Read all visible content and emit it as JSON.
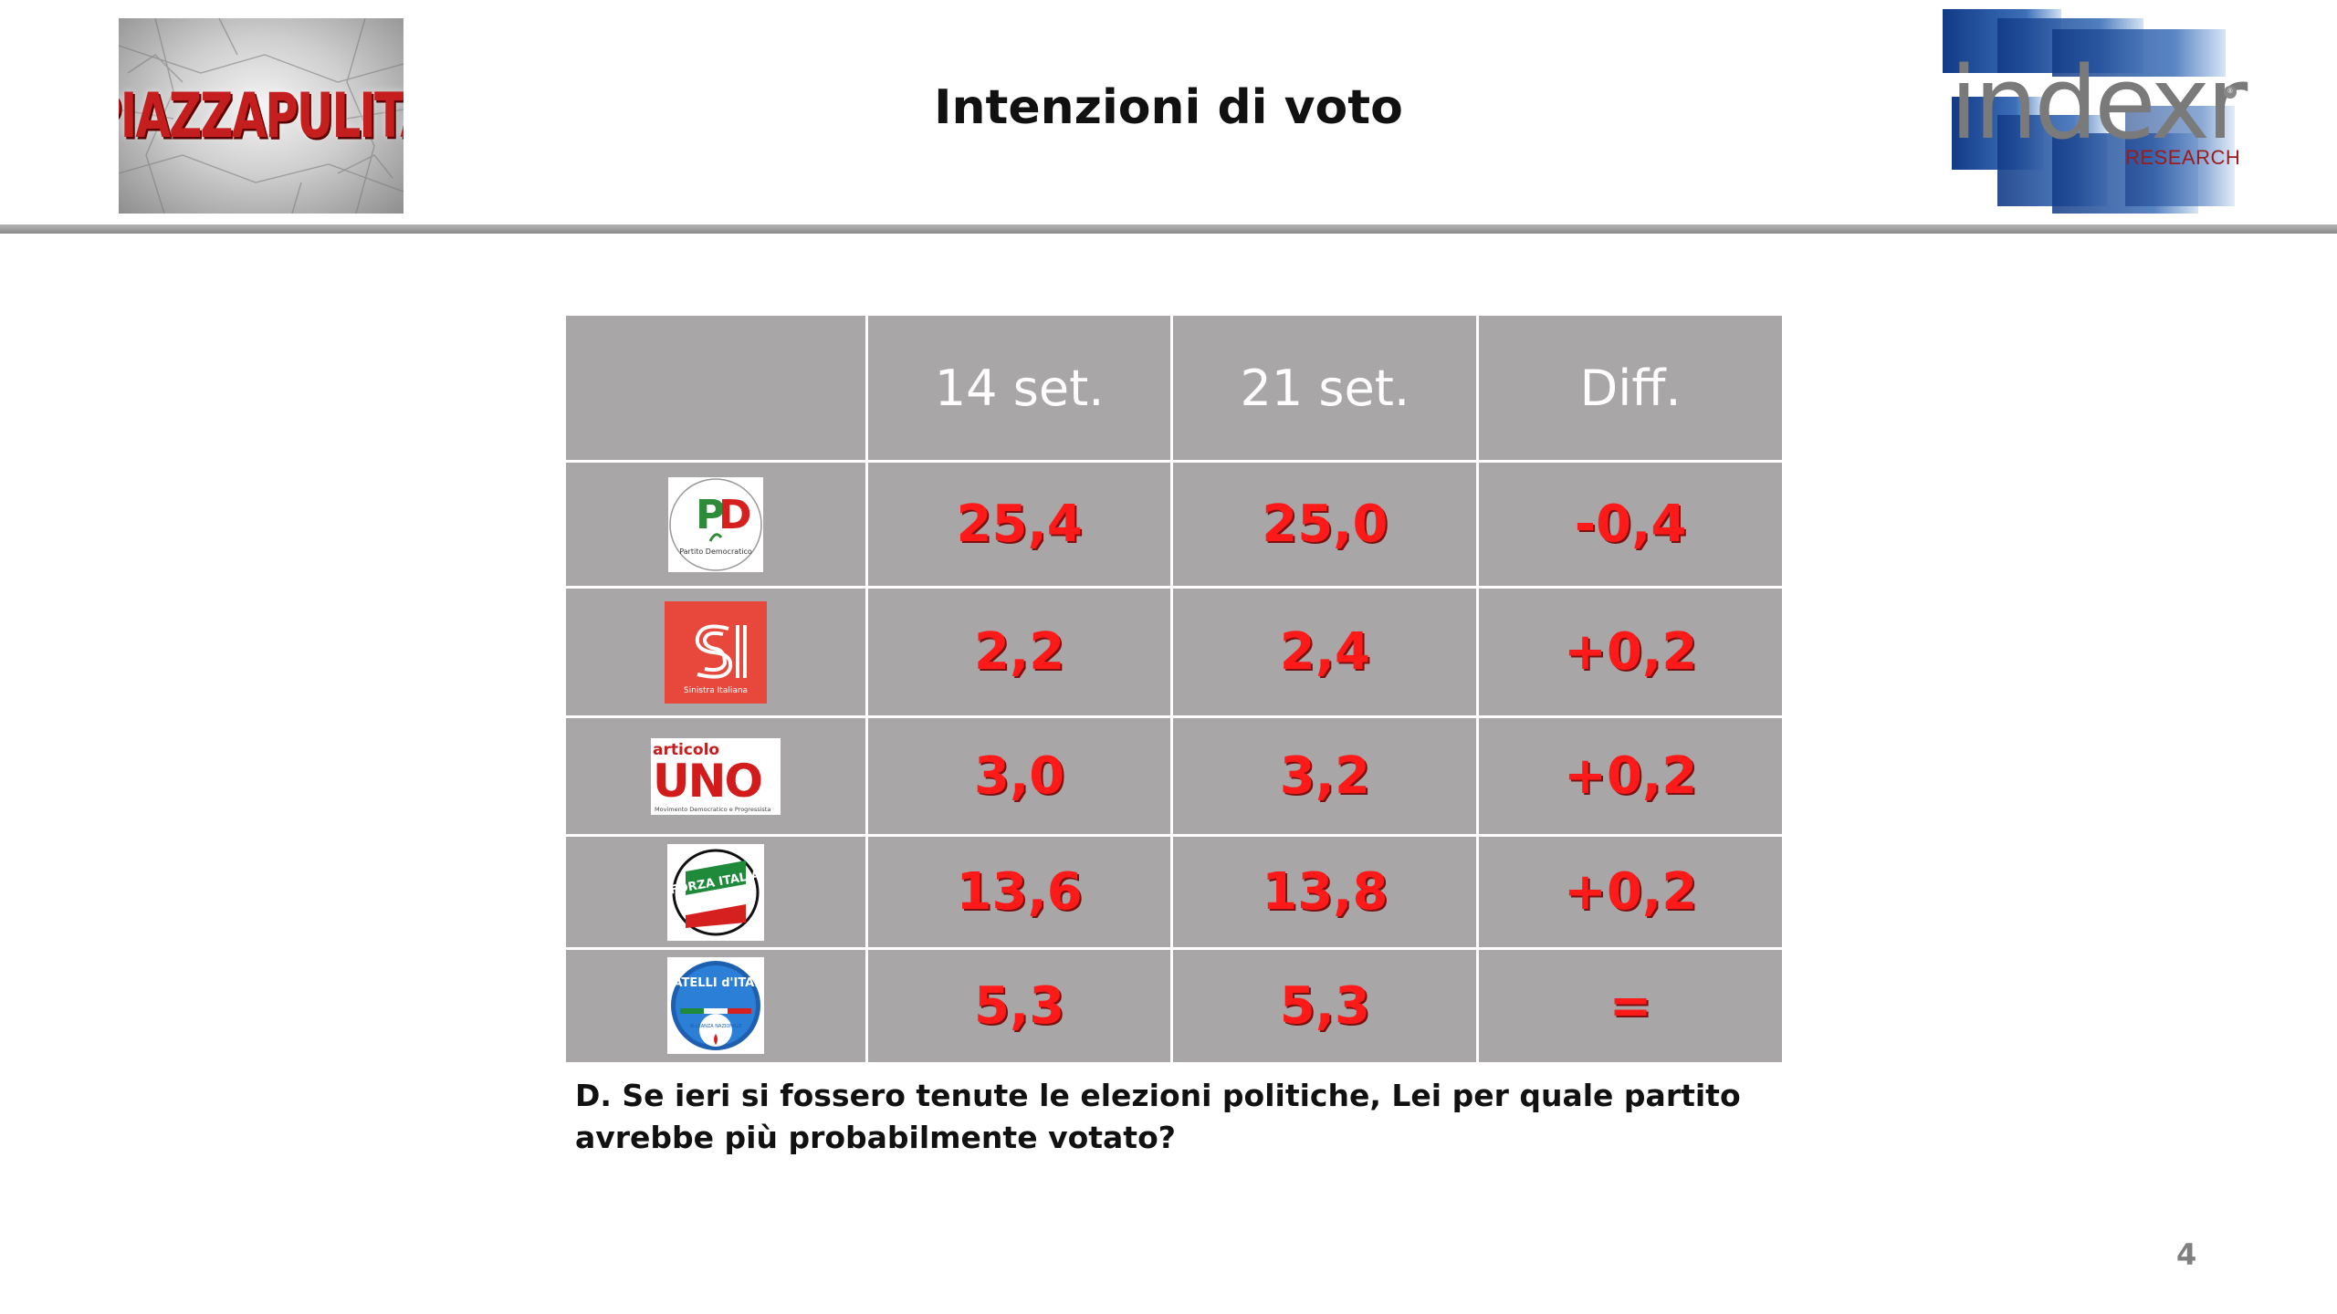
{
  "header": {
    "left_logo": {
      "name": "piazzapulita-logo",
      "text": "PIAZZAPULITA"
    },
    "title": "Intenzioni di voto",
    "right_logo": {
      "name": "index-research-logo",
      "text": "indexr",
      "subtext": "RESEARCH"
    }
  },
  "table": {
    "columns": [
      "",
      "14 set.",
      "21 set.",
      "Diff."
    ],
    "rows": [
      {
        "party_logo": "pd-logo",
        "logo_text": "Partito Democratico",
        "values": [
          "25,4",
          "25,0",
          "-0,4"
        ]
      },
      {
        "party_logo": "sinistra-italiana-logo",
        "logo_text": "Sinistra Italiana",
        "values": [
          "2,2",
          "2,4",
          "+0,2"
        ]
      },
      {
        "party_logo": "articolo-uno-logo",
        "logo_text": "articolo UNO",
        "logo_subtext": "Movimento Democratico e Progressista",
        "values": [
          "3,0",
          "3,2",
          "+0,2"
        ]
      },
      {
        "party_logo": "forza-italia-logo",
        "logo_text": "FORZA ITALIA",
        "values": [
          "13,6",
          "13,8",
          "+0,2"
        ]
      },
      {
        "party_logo": "fratelli-d-italia-logo",
        "logo_text": "FRATELLI d'ITALIA",
        "logo_subtext": "ALLEANZA NAZIONALE",
        "values": [
          "5,3",
          "5,3",
          "="
        ]
      }
    ]
  },
  "footnote": "D. Se ieri si fossero tenute le elezioni politiche, Lei per quale partito avrebbe più probabilmente votato?",
  "page_number": "4",
  "colors": {
    "table_bg": "#a8a6a7",
    "value_red": "#ff1a1a",
    "header_text": "#ffffff"
  }
}
